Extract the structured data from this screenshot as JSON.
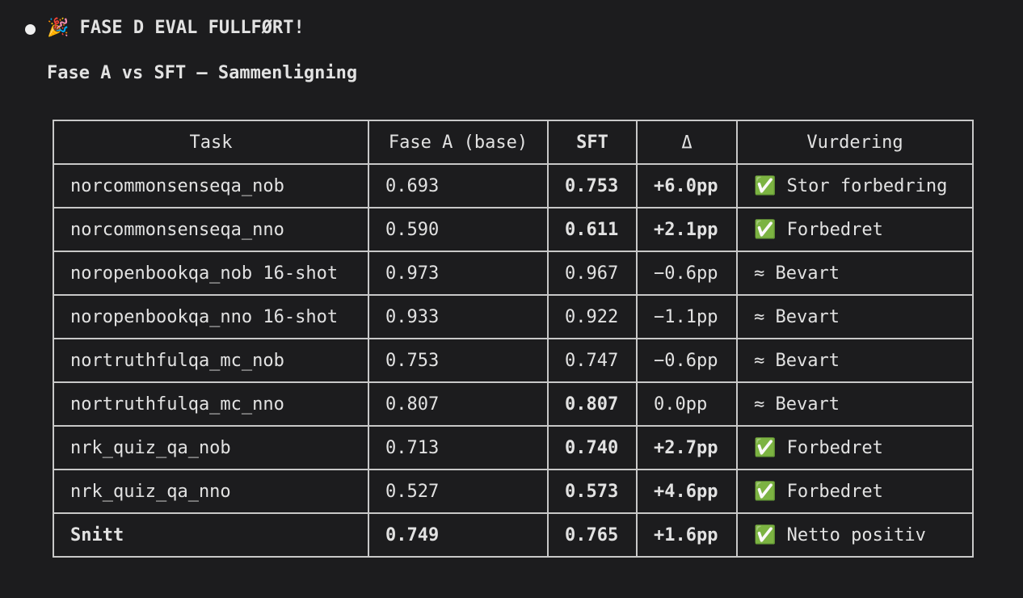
{
  "header": {
    "title": "🎉 FASE D EVAL FULLFØRT!",
    "subtitle": "Fase A vs SFT — Sammenligning"
  },
  "table": {
    "columns": [
      "Task",
      "Fase A (base)",
      "SFT",
      "Δ",
      "Vurdering"
    ],
    "rows": [
      [
        "norcommonsenseqa_nob",
        "0.693",
        "0.753",
        "+6.0pp",
        "✅ Stor forbedring"
      ],
      [
        "norcommonsenseqa_nno",
        "0.590",
        "0.611",
        "+2.1pp",
        "✅ Forbedret"
      ],
      [
        "noropenbookqa_nob 16-shot",
        "0.973",
        "0.967",
        "−0.6pp",
        "≈ Bevart"
      ],
      [
        "noropenbookqa_nno 16-shot",
        "0.933",
        "0.922",
        "−1.1pp",
        "≈ Bevart"
      ],
      [
        "nortruthfulqa_mc_nob",
        "0.753",
        "0.747",
        "−0.6pp",
        "≈ Bevart"
      ],
      [
        "nortruthfulqa_mc_nno",
        "0.807",
        "0.807",
        "0.0pp",
        "≈ Bevart"
      ],
      [
        "nrk_quiz_qa_nob",
        "0.713",
        "0.740",
        "+2.7pp",
        "✅ Forbedret"
      ],
      [
        "nrk_quiz_qa_nno",
        "0.527",
        "0.573",
        "+4.6pp",
        "✅ Forbedret"
      ],
      [
        "Snitt",
        "0.749",
        "0.765",
        "+1.6pp",
        "✅ Netto positiv"
      ]
    ]
  }
}
